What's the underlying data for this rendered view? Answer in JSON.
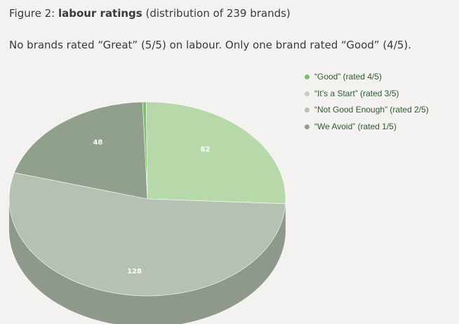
{
  "figure": {
    "prefix": "Figure 2: ",
    "title_bold": "labour ratings",
    "title_rest": " (distribution of 239 brands)"
  },
  "subtitle": "No brands rated “Great” (5/5) on labour. Only one brand rated “Good” (4/5).",
  "chart_data": {
    "type": "pie",
    "style": "3d",
    "legend_position": "top-right",
    "slices": [
      {
        "label": "“Good” (rated 4/5)",
        "value": 1,
        "color": "#7fbf72",
        "side_color": "#6a9f5f",
        "data_label": ""
      },
      {
        "label": "“It’s a Start” (rated 3/5)",
        "value": 62,
        "color": "#b7d9a9",
        "side_color": "#96b58a",
        "data_label": "62"
      },
      {
        "label": "“Not Good Enough” (rated 2/5)",
        "value": 128,
        "color": "#b6c0b3",
        "side_color": "#8e988b",
        "data_label": "128"
      },
      {
        "label": "“We Avoid” (rated 1/5)",
        "value": 48,
        "color": "#919f8d",
        "side_color": "#737f70",
        "data_label": "48"
      }
    ],
    "total": 239
  }
}
